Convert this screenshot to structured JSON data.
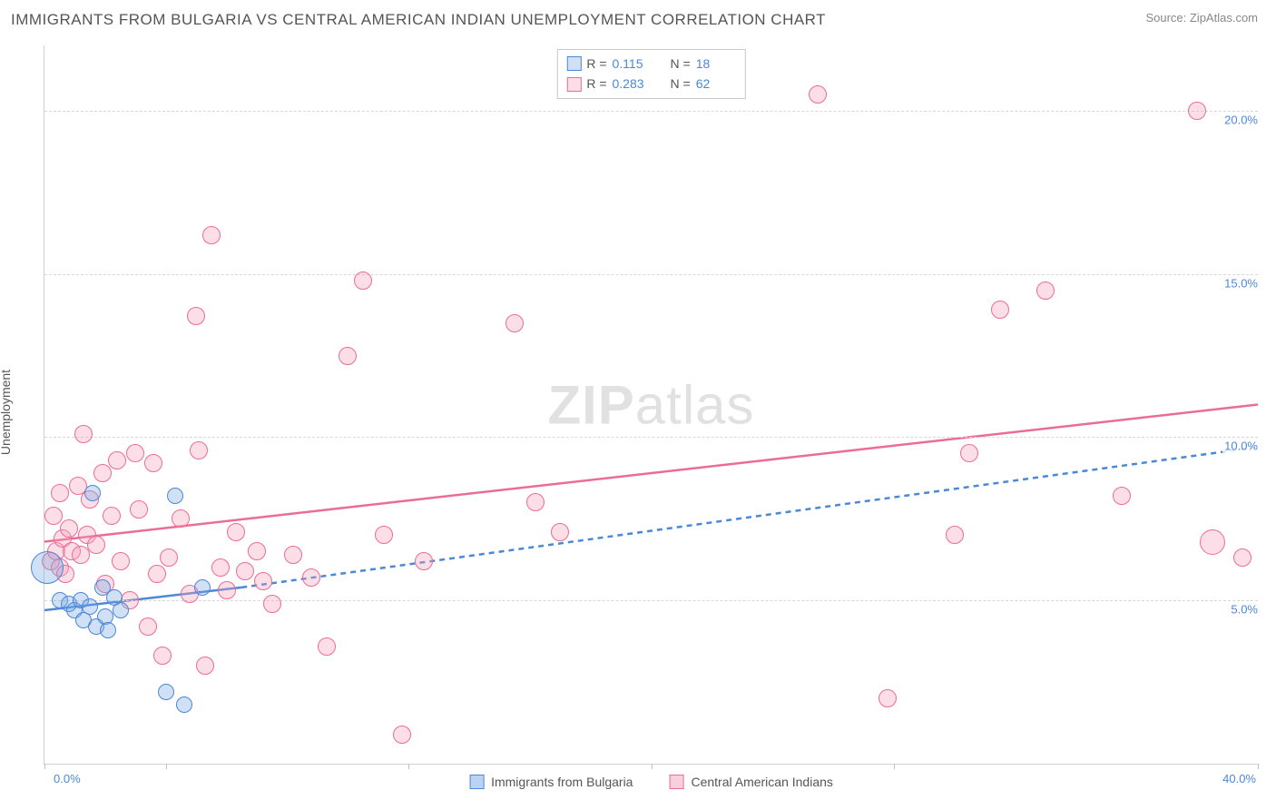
{
  "header": {
    "title": "IMMIGRANTS FROM BULGARIA VS CENTRAL AMERICAN INDIAN UNEMPLOYMENT CORRELATION CHART",
    "source": "Source: ZipAtlas.com"
  },
  "ylabel": "Unemployment",
  "watermark_zip": "ZIP",
  "watermark_atlas": "atlas",
  "chart": {
    "type": "scatter",
    "background_color": "#ffffff",
    "grid_color": "#d8d8d8",
    "axis_color": "#d0d0d0",
    "text_color": "#555555",
    "value_color": "#4a88d8",
    "xlim": [
      0,
      40
    ],
    "ylim": [
      0,
      22
    ],
    "xticks": [
      0,
      4,
      12,
      20,
      28,
      40
    ],
    "xtick_labels_shown": {
      "0": "0.0%",
      "40": "40.0%"
    },
    "yticks": [
      5,
      10,
      15,
      20
    ],
    "ytick_labels": [
      "5.0%",
      "10.0%",
      "15.0%",
      "20.0%"
    ],
    "series": [
      {
        "name": "Immigrants from Bulgaria",
        "color_fill": "rgba(120,165,225,0.35)",
        "color_stroke": "#4a88d8",
        "marker_radius": 9,
        "R": "0.115",
        "N": "18",
        "trend": {
          "x1": 0,
          "y1": 4.7,
          "x2": 6.5,
          "y2": 5.4,
          "dashed_x2": 40,
          "dashed_y2": 9.7
        },
        "points": [
          [
            0.1,
            6.0,
            18
          ],
          [
            0.5,
            5.0,
            9
          ],
          [
            0.8,
            4.9,
            9
          ],
          [
            1.0,
            4.7,
            9
          ],
          [
            1.2,
            5.0,
            9
          ],
          [
            1.3,
            4.4,
            9
          ],
          [
            1.5,
            4.8,
            9
          ],
          [
            1.6,
            8.3,
            9
          ],
          [
            1.7,
            4.2,
            9
          ],
          [
            1.9,
            5.4,
            9
          ],
          [
            2.0,
            4.5,
            9
          ],
          [
            2.1,
            4.1,
            9
          ],
          [
            2.3,
            5.1,
            9
          ],
          [
            2.5,
            4.7,
            9
          ],
          [
            4.0,
            2.2,
            9
          ],
          [
            4.3,
            8.2,
            9
          ],
          [
            4.6,
            1.8,
            9
          ],
          [
            5.2,
            5.4,
            9
          ]
        ]
      },
      {
        "name": "Central American Indians",
        "color_fill": "rgba(245,160,185,0.35)",
        "color_stroke": "#ec6d94",
        "marker_radius": 10,
        "R": "0.283",
        "N": "62",
        "trend": {
          "x1": 0,
          "y1": 6.8,
          "x2": 40,
          "y2": 11.0
        },
        "points": [
          [
            0.2,
            6.2,
            10
          ],
          [
            0.3,
            7.6,
            10
          ],
          [
            0.4,
            6.5,
            10
          ],
          [
            0.5,
            6.0,
            10
          ],
          [
            0.5,
            8.3,
            10
          ],
          [
            0.6,
            6.9,
            10
          ],
          [
            0.7,
            5.8,
            10
          ],
          [
            0.8,
            7.2,
            10
          ],
          [
            0.9,
            6.5,
            10
          ],
          [
            1.1,
            8.5,
            10
          ],
          [
            1.2,
            6.4,
            10
          ],
          [
            1.3,
            10.1,
            10
          ],
          [
            1.4,
            7.0,
            10
          ],
          [
            1.5,
            8.1,
            10
          ],
          [
            1.7,
            6.7,
            10
          ],
          [
            1.9,
            8.9,
            10
          ],
          [
            2.0,
            5.5,
            10
          ],
          [
            2.2,
            7.6,
            10
          ],
          [
            2.4,
            9.3,
            10
          ],
          [
            2.5,
            6.2,
            10
          ],
          [
            2.8,
            5.0,
            10
          ],
          [
            3.0,
            9.5,
            10
          ],
          [
            3.1,
            7.8,
            10
          ],
          [
            3.4,
            4.2,
            10
          ],
          [
            3.6,
            9.2,
            10
          ],
          [
            3.7,
            5.8,
            10
          ],
          [
            3.9,
            3.3,
            10
          ],
          [
            4.1,
            6.3,
            10
          ],
          [
            4.5,
            7.5,
            10
          ],
          [
            4.8,
            5.2,
            10
          ],
          [
            5.0,
            13.7,
            10
          ],
          [
            5.1,
            9.6,
            10
          ],
          [
            5.3,
            3.0,
            10
          ],
          [
            5.5,
            16.2,
            10
          ],
          [
            5.8,
            6.0,
            10
          ],
          [
            6.0,
            5.3,
            10
          ],
          [
            6.3,
            7.1,
            10
          ],
          [
            6.6,
            5.9,
            10
          ],
          [
            7.0,
            6.5,
            10
          ],
          [
            7.2,
            5.6,
            10
          ],
          [
            7.5,
            4.9,
            10
          ],
          [
            8.2,
            6.4,
            10
          ],
          [
            8.8,
            5.7,
            10
          ],
          [
            9.3,
            3.6,
            10
          ],
          [
            10.0,
            12.5,
            10
          ],
          [
            10.5,
            14.8,
            10
          ],
          [
            11.2,
            7.0,
            10
          ],
          [
            11.8,
            0.9,
            10
          ],
          [
            12.5,
            6.2,
            10
          ],
          [
            15.5,
            13.5,
            10
          ],
          [
            16.2,
            8.0,
            10
          ],
          [
            17.0,
            7.1,
            10
          ],
          [
            25.5,
            20.5,
            10
          ],
          [
            27.8,
            2.0,
            10
          ],
          [
            30.0,
            7.0,
            10
          ],
          [
            30.5,
            9.5,
            10
          ],
          [
            31.5,
            13.9,
            10
          ],
          [
            33.0,
            14.5,
            10
          ],
          [
            35.5,
            8.2,
            10
          ],
          [
            38.5,
            6.8,
            14
          ],
          [
            38.0,
            20.0,
            10
          ],
          [
            39.5,
            6.3,
            10
          ]
        ]
      }
    ]
  },
  "legend_bottom": [
    {
      "label": "Immigrants from Bulgaria",
      "fill": "rgba(120,165,225,0.5)",
      "stroke": "#4a88d8"
    },
    {
      "label": "Central American Indians",
      "fill": "rgba(245,160,185,0.5)",
      "stroke": "#ec6d94"
    }
  ]
}
